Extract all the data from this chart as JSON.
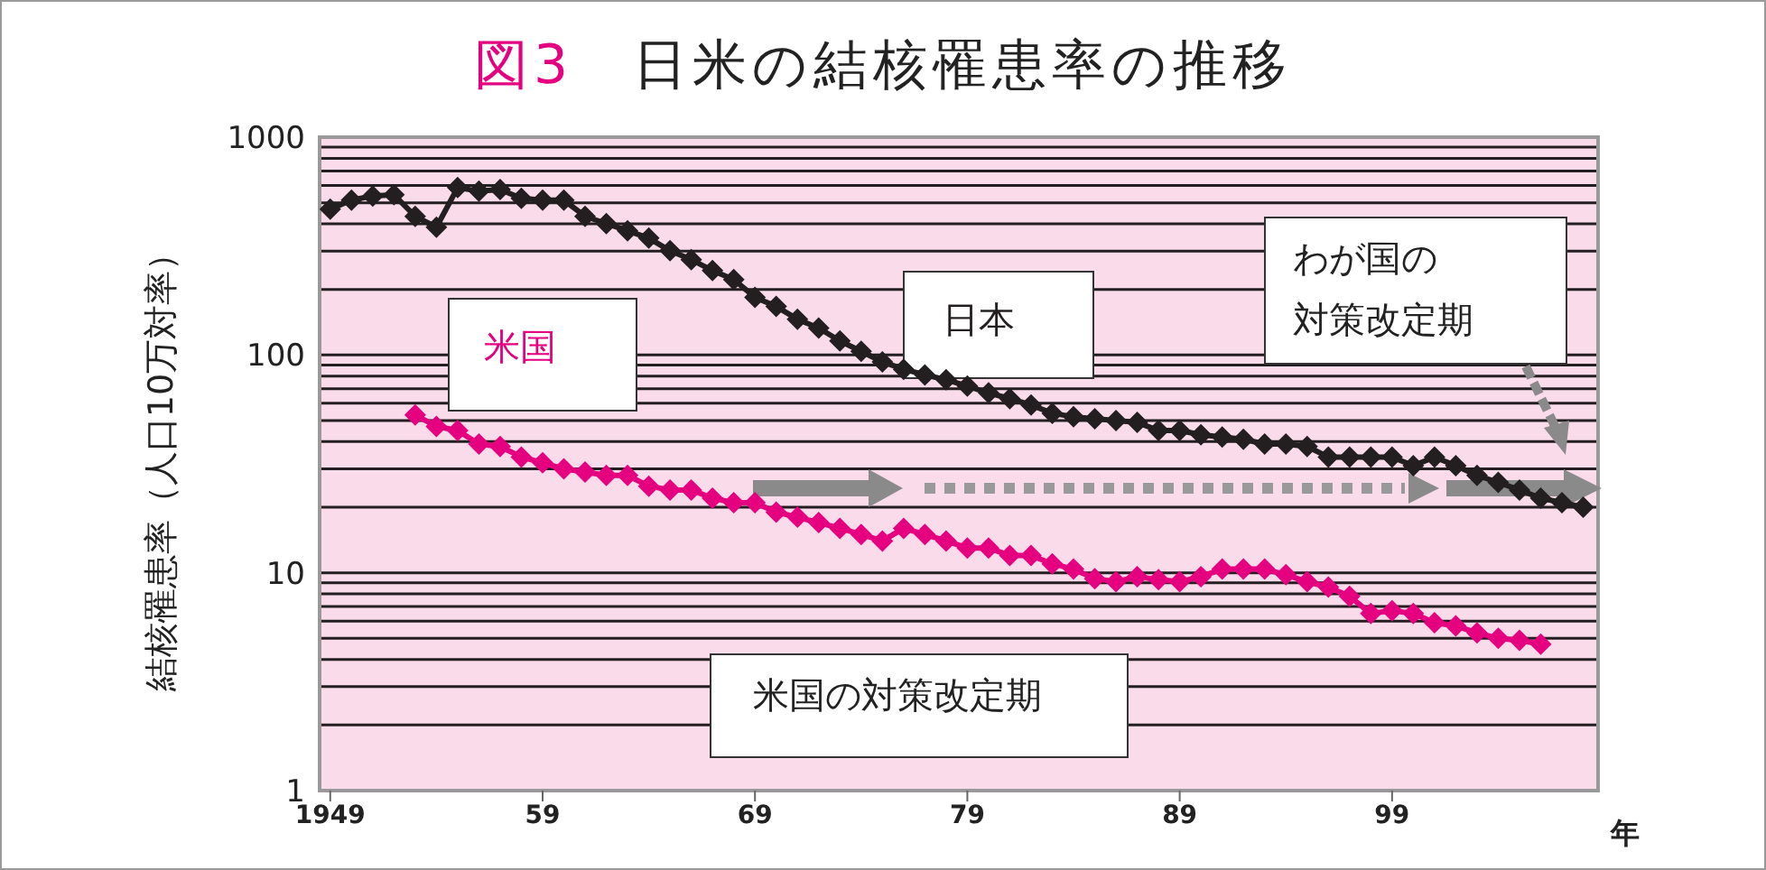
{
  "chart_data": {
    "type": "line",
    "title": "図3　日米の結核罹患率の推移",
    "ylabel": "結核罹患率（人口10万対率）",
    "xlabel": "年",
    "xlim": [
      1948.5,
      2008.7
    ],
    "xticks": [
      {
        "value": 1949,
        "label": "1949"
      },
      {
        "value": 1959,
        "label": "59"
      },
      {
        "value": 1969,
        "label": "69"
      },
      {
        "value": 1979,
        "label": "79"
      },
      {
        "value": 1989,
        "label": "89"
      },
      {
        "value": 1999,
        "label": "99"
      }
    ],
    "ylim": [
      1,
      1000
    ],
    "yticks": [
      1,
      10,
      100,
      1000
    ],
    "log": "y",
    "grid": "y",
    "legend": false,
    "marker": "diamond",
    "series": [
      {
        "name": "日本",
        "color": "#231f20",
        "x": [
          1949,
          1950,
          1951,
          1952,
          1953,
          1954,
          1955,
          1956,
          1957,
          1958,
          1959,
          1960,
          1961,
          1962,
          1963,
          1964,
          1965,
          1966,
          1967,
          1968,
          1969,
          1970,
          1971,
          1972,
          1973,
          1974,
          1975,
          1976,
          1977,
          1978,
          1979,
          1980,
          1981,
          1982,
          1983,
          1984,
          1985,
          1986,
          1987,
          1988,
          1989,
          1990,
          1991,
          1992,
          1993,
          1994,
          1995,
          1996,
          1997,
          1998,
          1999,
          2000,
          2001,
          2002,
          2003,
          2004,
          2005,
          2006,
          2007,
          2008
        ],
        "values": [
          467,
          514,
          537,
          544,
          433,
          386,
          587,
          565,
          575,
          524,
          514,
          514,
          433,
          401,
          372,
          344,
          301,
          274,
          244,
          222,
          184,
          167,
          146,
          133,
          116,
          104,
          93,
          86,
          81,
          77,
          72,
          67,
          63,
          59,
          54,
          52,
          51,
          50,
          49,
          45,
          45,
          43,
          42,
          41,
          39,
          39,
          38,
          34,
          34,
          34,
          34,
          31,
          34,
          31,
          28,
          26,
          24,
          22,
          21,
          20
        ]
      },
      {
        "name": "米国",
        "color": "#e4007f",
        "x": [
          1953,
          1954,
          1955,
          1956,
          1957,
          1958,
          1959,
          1960,
          1961,
          1962,
          1963,
          1964,
          1965,
          1966,
          1967,
          1968,
          1969,
          1970,
          1971,
          1972,
          1973,
          1974,
          1975,
          1976,
          1977,
          1978,
          1979,
          1980,
          1981,
          1982,
          1983,
          1984,
          1985,
          1986,
          1987,
          1988,
          1989,
          1990,
          1991,
          1992,
          1993,
          1994,
          1995,
          1996,
          1997,
          1998,
          1999,
          2000,
          2001,
          2002,
          2003,
          2004,
          2005,
          2006
        ],
        "values": [
          53,
          47,
          45,
          39,
          38,
          34,
          32,
          30,
          29,
          28,
          28,
          25,
          24,
          24,
          22,
          21,
          21,
          19,
          18,
          17,
          16,
          15,
          14,
          16,
          15,
          14,
          13,
          13,
          12,
          12,
          11,
          10.4,
          9.4,
          9.1,
          9.6,
          9.3,
          9.1,
          9.6,
          10.4,
          10.4,
          10.4,
          9.8,
          9.1,
          8.6,
          7.8,
          6.5,
          6.7,
          6.5,
          5.9,
          5.7,
          5.3,
          5.0,
          4.9,
          4.7
        ]
      }
    ],
    "annotations": [
      "わが国の対策改定期",
      "米国の対策改定期"
    ]
  }
}
